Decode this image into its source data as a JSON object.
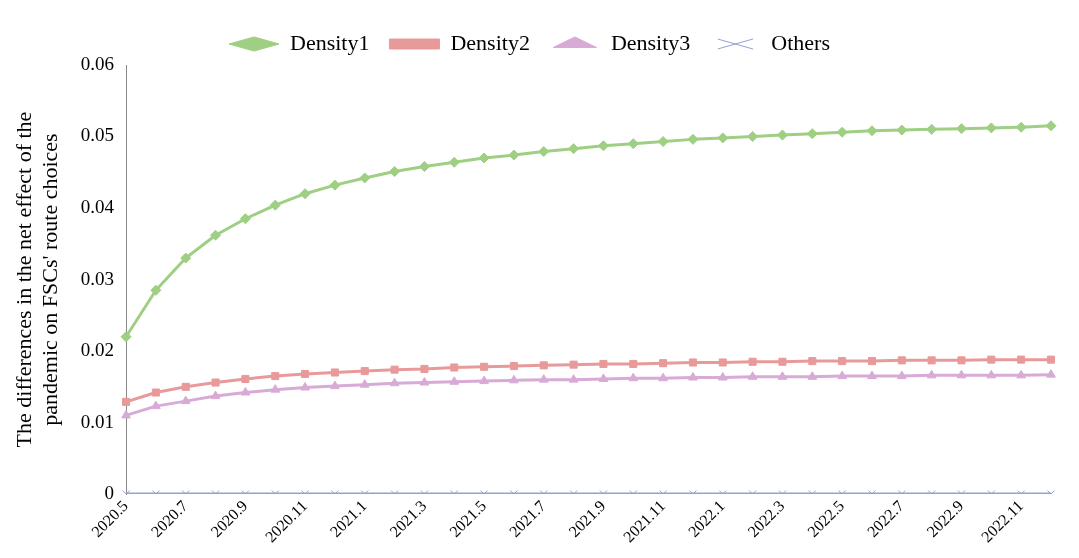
{
  "chart_data": {
    "type": "line",
    "ylabel": "The differences in the net effect of the pandemic on FSCs' route choices",
    "categories": [
      "2020.5",
      null,
      "2020.7",
      null,
      "2020.9",
      null,
      "2020.11",
      null,
      "2021.1",
      null,
      "2021.3",
      null,
      "2021.5",
      null,
      "2021.7",
      null,
      "2021.9",
      null,
      "2021.11",
      null,
      "2022.1",
      null,
      "2022.3",
      null,
      "2022.5",
      null,
      "2022.7",
      null,
      "2022.9",
      null,
      "2022.11",
      null
    ],
    "series": [
      {
        "name": "Density1",
        "color": "#9fcf82",
        "marker": "diamond",
        "values": [
          0.022,
          0.0285,
          0.033,
          0.0362,
          0.0385,
          0.0404,
          0.042,
          0.0432,
          0.0442,
          0.0451,
          0.0458,
          0.0464,
          0.047,
          0.0474,
          0.0479,
          0.0483,
          0.0487,
          0.049,
          0.0493,
          0.0496,
          0.0498,
          0.05,
          0.0502,
          0.0504,
          0.0506,
          0.0508,
          0.0509,
          0.051,
          0.0511,
          0.0512,
          0.0513,
          0.0515
        ]
      },
      {
        "name": "Density2",
        "color": "#e89a9a",
        "marker": "square",
        "values": [
          0.0129,
          0.0142,
          0.015,
          0.0156,
          0.0161,
          0.0165,
          0.0168,
          0.017,
          0.0172,
          0.0174,
          0.0175,
          0.0177,
          0.0178,
          0.0179,
          0.018,
          0.0181,
          0.0182,
          0.0182,
          0.0183,
          0.0184,
          0.0184,
          0.0185,
          0.0185,
          0.0186,
          0.0186,
          0.0186,
          0.0187,
          0.0187,
          0.0187,
          0.0188,
          0.0188,
          0.0188
        ]
      },
      {
        "name": "Density3",
        "color": "#d8aad6",
        "marker": "triangle",
        "values": [
          0.011,
          0.0123,
          0.013,
          0.0137,
          0.0142,
          0.0146,
          0.0149,
          0.0151,
          0.0153,
          0.0155,
          0.0156,
          0.0157,
          0.0158,
          0.0159,
          0.016,
          0.016,
          0.0161,
          0.0162,
          0.0162,
          0.0163,
          0.0163,
          0.0164,
          0.0164,
          0.0164,
          0.0165,
          0.0165,
          0.0165,
          0.0166,
          0.0166,
          0.0166,
          0.0166,
          0.0167
        ]
      },
      {
        "name": "Others",
        "color": "#8fa3d6",
        "marker": "cross",
        "values": [
          0,
          0,
          0,
          0,
          0,
          0,
          0,
          0,
          0,
          0,
          0,
          0,
          0,
          0,
          0,
          0,
          0,
          0,
          0,
          0,
          0,
          0,
          0,
          0,
          0,
          0,
          0,
          0,
          0,
          0,
          0,
          0
        ]
      }
    ],
    "ylim": [
      0,
      0.06
    ],
    "yticks": [
      0,
      0.01,
      0.02,
      0.03,
      0.04,
      0.05,
      0.06
    ],
    "grid": false,
    "legend": "top"
  }
}
